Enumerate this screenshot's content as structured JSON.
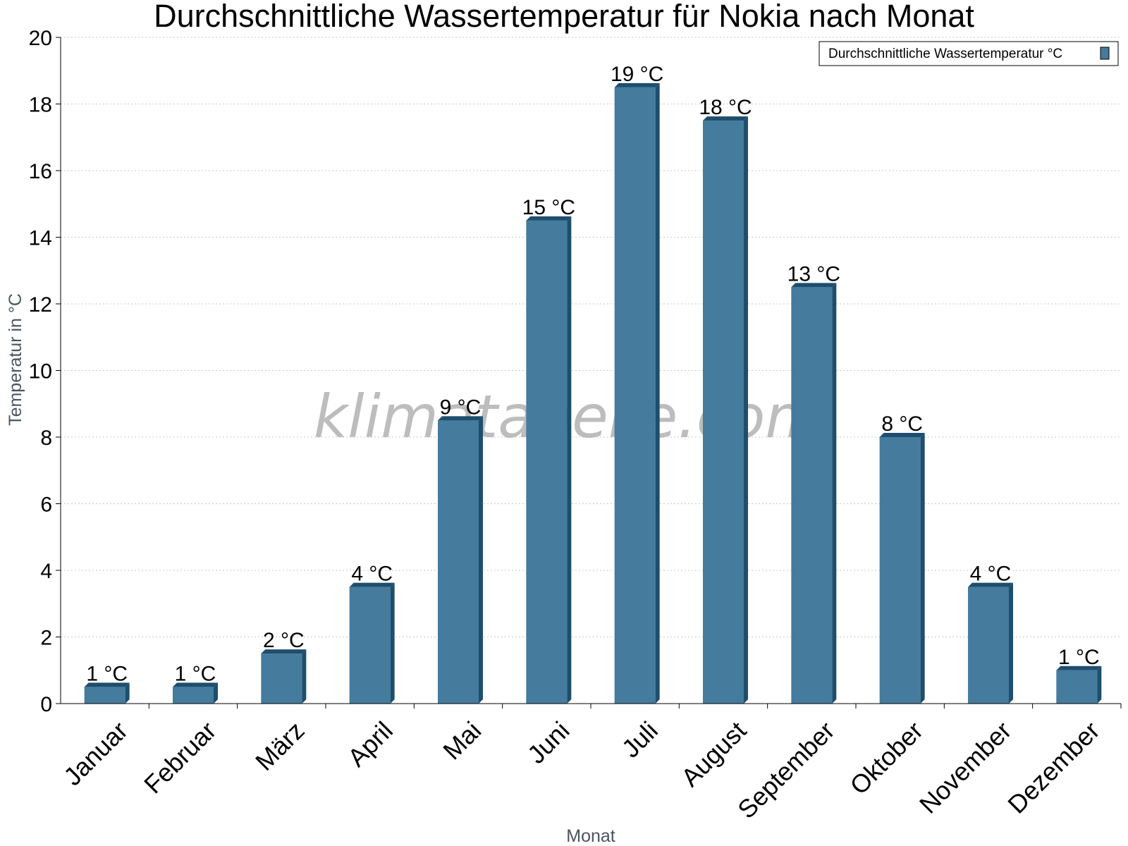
{
  "chart_data": {
    "type": "bar",
    "title": "Durchschnittliche Wassertemperatur für Nokia nach Monat",
    "xlabel": "Monat",
    "ylabel": "Temperatur in °C",
    "ylim": [
      0,
      20
    ],
    "yticks": [
      0,
      2,
      4,
      6,
      8,
      10,
      12,
      14,
      16,
      18,
      20
    ],
    "grid": true,
    "legend_position": "top-right",
    "categories": [
      "Januar",
      "Februar",
      "März",
      "April",
      "Mai",
      "Juni",
      "Juli",
      "August",
      "September",
      "Oktober",
      "November",
      "Dezember"
    ],
    "series": [
      {
        "name": "Durchschnittliche Wassertemperatur °C",
        "values": [
          0.5,
          0.5,
          1.5,
          3.5,
          8.5,
          14.5,
          18.5,
          17.5,
          12.5,
          8.0,
          3.5,
          1.0
        ],
        "data_labels": [
          "1 °C",
          "1 °C",
          "2 °C",
          "4 °C",
          "9 °C",
          "15 °C",
          "19 °C",
          "18 °C",
          "13 °C",
          "8 °C",
          "4 °C",
          "1 °C"
        ],
        "color": "#457b9d",
        "shade_color": "#1d4e6e"
      }
    ]
  },
  "watermark": "klimatabelle.com"
}
